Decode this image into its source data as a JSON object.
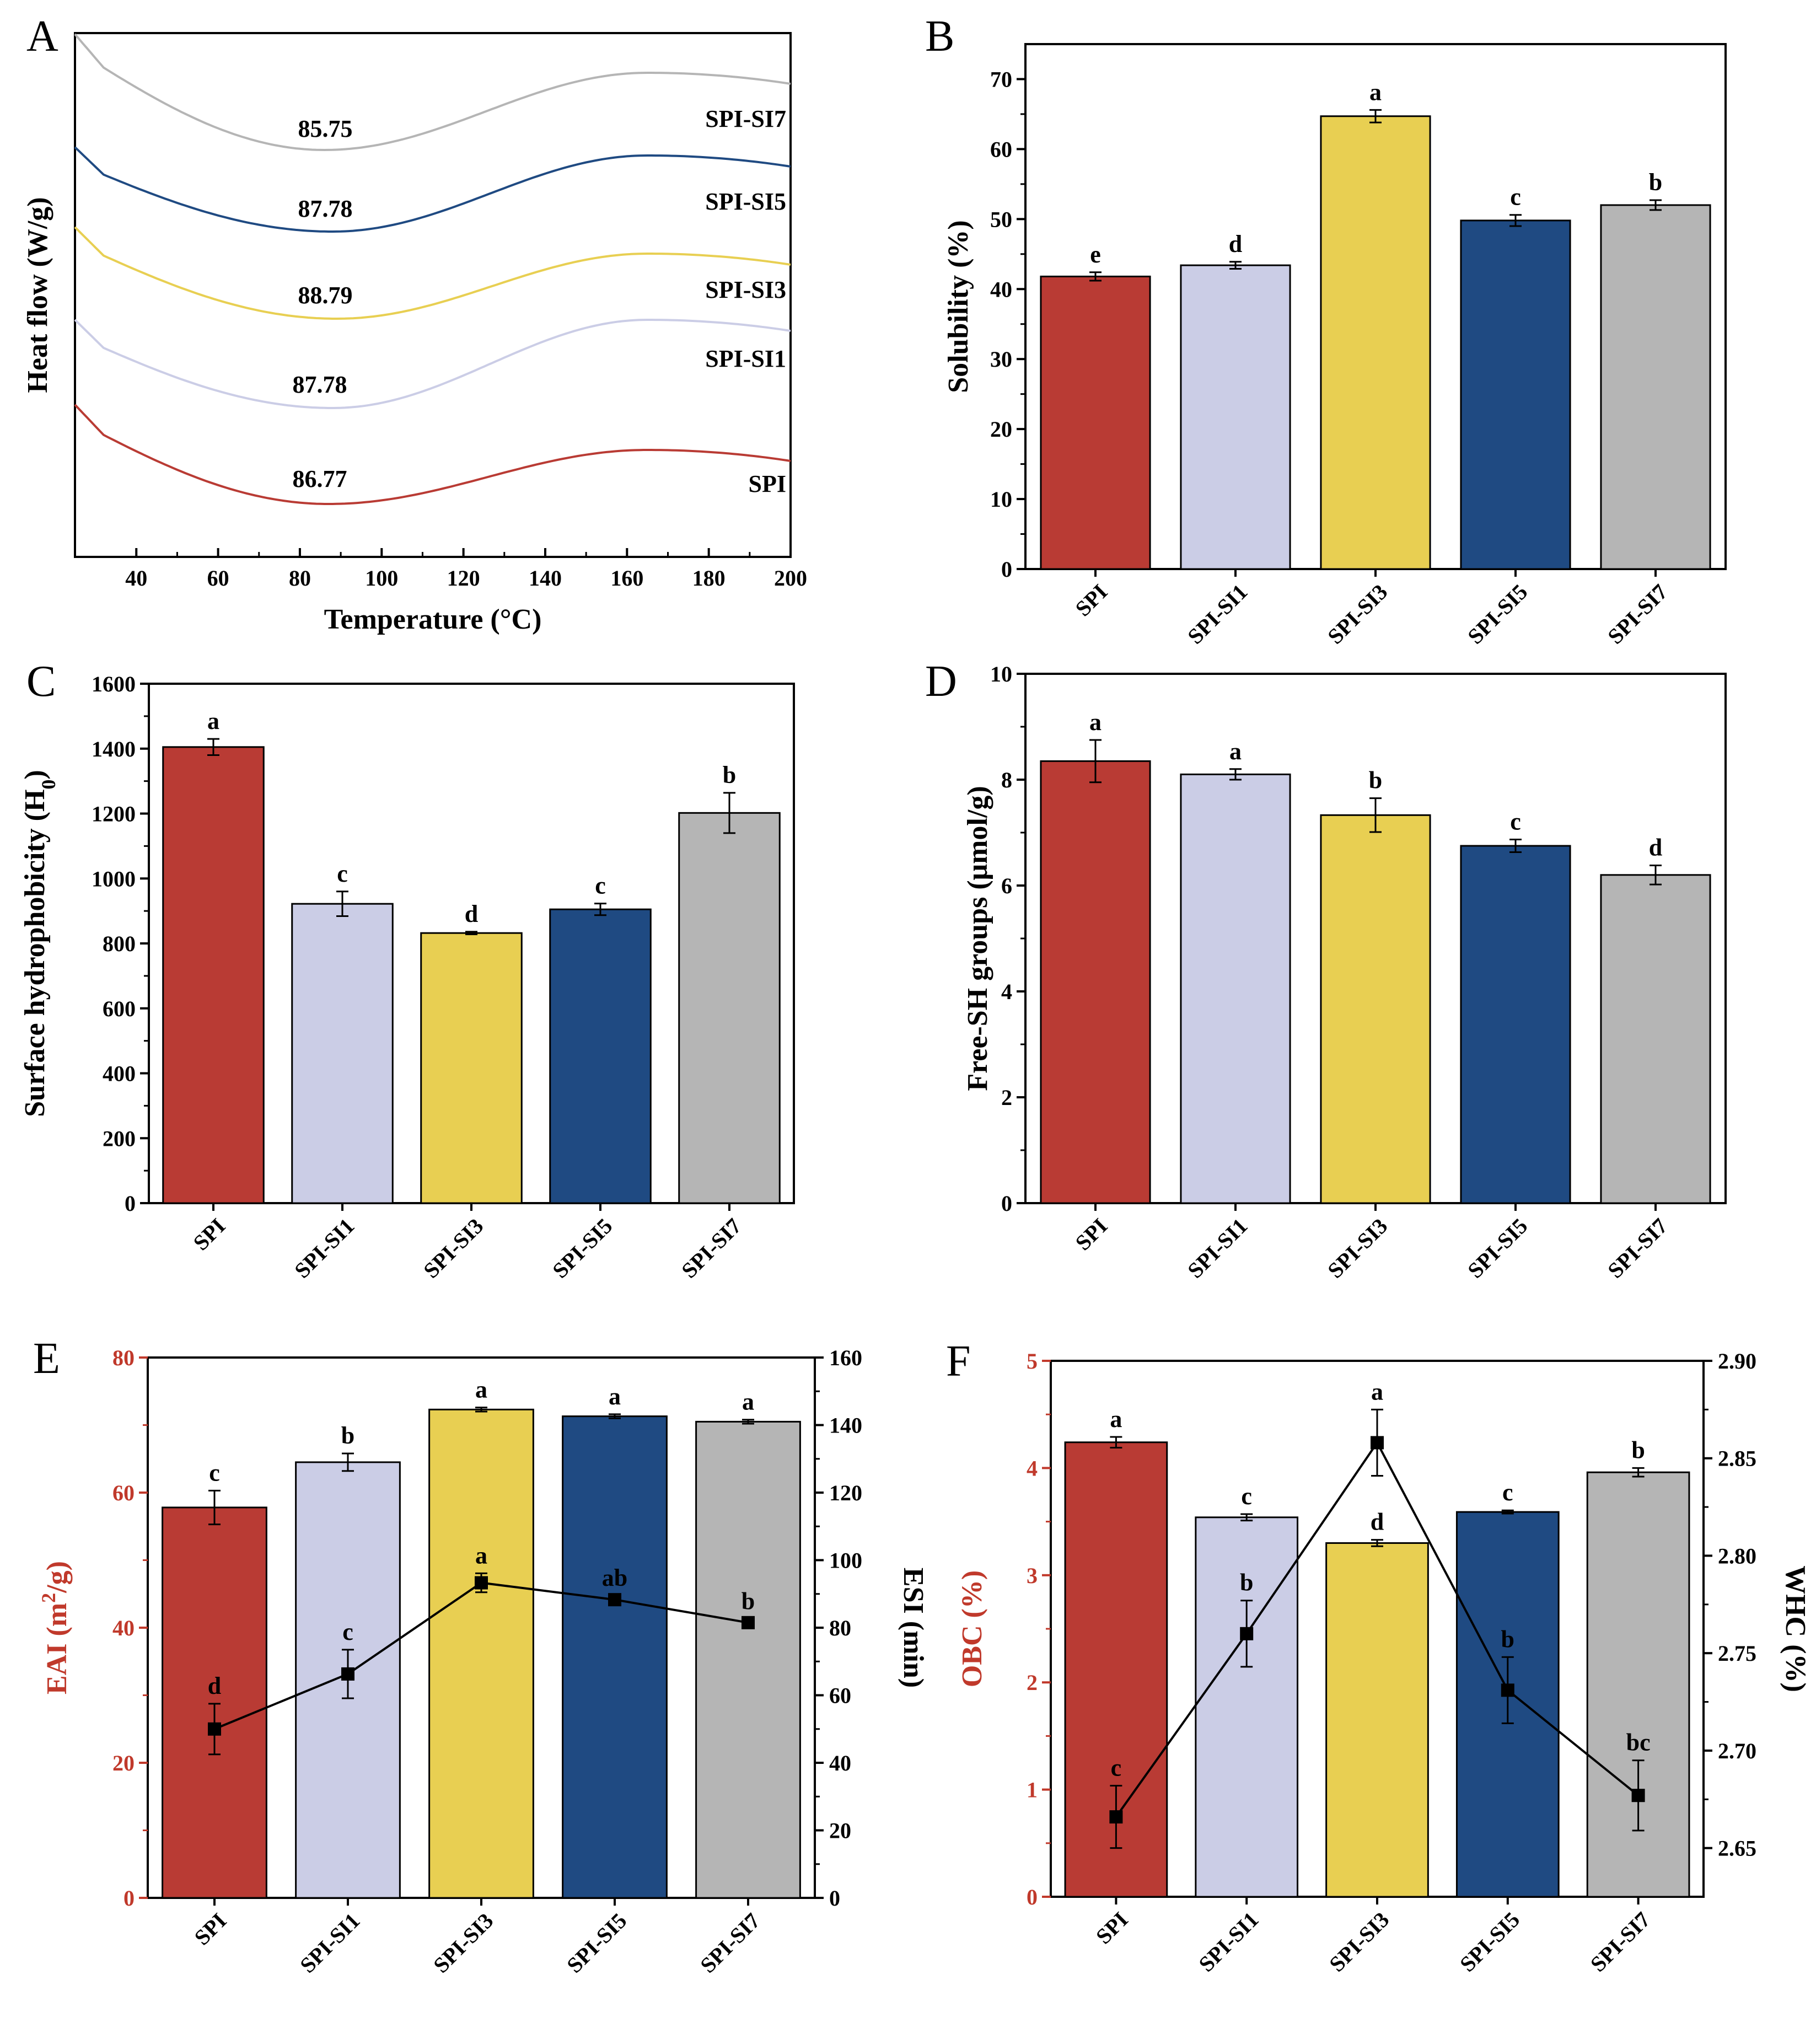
{
  "chart_data": [
    {
      "panel": "A",
      "type": "line",
      "xlabel": "Temperature (°C)",
      "ylabel": "Heat flow (W/g)",
      "xlim": [
        25,
        200
      ],
      "xticks": [
        40,
        60,
        80,
        100,
        120,
        140,
        160,
        180,
        200
      ],
      "series": [
        {
          "name": "SPI-SI7",
          "peak": "85.75",
          "color": "#b5b5b5"
        },
        {
          "name": "SPI-SI5",
          "peak": "87.78",
          "color": "#1f4a82"
        },
        {
          "name": "SPI-SI3",
          "peak": "88.79",
          "color": "#e8cf52"
        },
        {
          "name": "SPI-SI1",
          "peak": "87.78",
          "color": "#cbcde6"
        },
        {
          "name": "SPI",
          "peak": "86.77",
          "color": "#b93b34"
        }
      ]
    },
    {
      "panel": "B",
      "type": "bar",
      "ylabel": "Solubility (%)",
      "ylim": [
        0,
        75
      ],
      "yticks": [
        0,
        10,
        20,
        30,
        40,
        50,
        60,
        70
      ],
      "categories": [
        "SPI",
        "SPI-SI1",
        "SPI-SI3",
        "SPI-SI5",
        "SPI-SI7"
      ],
      "values": [
        41.8,
        43.4,
        64.7,
        49.8,
        52.0
      ],
      "errors": [
        0.6,
        0.5,
        0.9,
        0.8,
        0.7
      ],
      "letters": [
        "e",
        "d",
        "a",
        "c",
        "b"
      ]
    },
    {
      "panel": "C",
      "type": "bar",
      "ylabel": "Surface hydrophobicity (H",
      "ylabel_sub": "0",
      "ylabel_end": ")",
      "ylim": [
        0,
        1600
      ],
      "yticks": [
        0,
        200,
        400,
        600,
        800,
        1000,
        1200,
        1400,
        1600
      ],
      "categories": [
        "SPI",
        "SPI-SI1",
        "SPI-SI3",
        "SPI-SI5",
        "SPI-SI7"
      ],
      "values": [
        1405,
        922,
        832,
        905,
        1202
      ],
      "errors": [
        25,
        38,
        4,
        18,
        62
      ],
      "letters": [
        "a",
        "c",
        "d",
        "c",
        "b"
      ]
    },
    {
      "panel": "D",
      "type": "bar",
      "ylabel": "Free-SH groups (μmol/g)",
      "ylim": [
        0,
        10
      ],
      "yticks": [
        0,
        2,
        4,
        6,
        8,
        10
      ],
      "categories": [
        "SPI",
        "SPI-SI1",
        "SPI-SI3",
        "SPI-SI5",
        "SPI-SI7"
      ],
      "values": [
        8.35,
        8.1,
        7.33,
        6.75,
        6.2
      ],
      "errors": [
        0.4,
        0.1,
        0.32,
        0.12,
        0.18
      ],
      "letters": [
        "a",
        "a",
        "b",
        "c",
        "d"
      ]
    },
    {
      "panel": "E",
      "type": "bar+line",
      "ylabel_left": "EAI (m",
      "ylabel_left_sup": "2",
      "ylabel_left_end": "/g)",
      "ylabel_right": "ESI (min)",
      "ylim_left": [
        0,
        80
      ],
      "yticks_left": [
        0,
        20,
        40,
        60,
        80
      ],
      "ylim_right": [
        0,
        160
      ],
      "yticks_right": [
        0,
        20,
        40,
        60,
        80,
        100,
        120,
        140,
        160
      ],
      "categories": [
        "SPI",
        "SPI-SI1",
        "SPI-SI3",
        "SPI-SI5",
        "SPI-SI7"
      ],
      "bar_series": {
        "name": "EAI",
        "values": [
          57.8,
          64.5,
          72.3,
          71.3,
          70.5
        ],
        "errors": [
          2.5,
          1.3,
          0.3,
          0.3,
          0.3
        ],
        "letters": [
          "c",
          "b",
          "a",
          "a",
          "a"
        ]
      },
      "line_series": {
        "name": "ESI",
        "values": [
          50,
          66.3,
          93.3,
          88.3,
          81.5
        ],
        "errors": [
          7.5,
          7.2,
          2.8,
          1.2,
          1.0
        ],
        "letters": [
          "d",
          "c",
          "a",
          "ab",
          "b"
        ]
      }
    },
    {
      "panel": "F",
      "type": "bar+line",
      "ylabel_left": "OBC (%)",
      "ylabel_right": "WHC (%)",
      "ylim_left": [
        0,
        5
      ],
      "yticks_left": [
        0,
        1,
        2,
        3,
        4,
        5
      ],
      "ylim_right": [
        2.625,
        2.9
      ],
      "yticks_right": [
        "2.65",
        "2.70",
        "2.75",
        "2.80",
        "2.85",
        "2.90"
      ],
      "categories": [
        "SPI",
        "SPI-SI1",
        "SPI-SI3",
        "SPI-SI5",
        "SPI-SI7"
      ],
      "bar_series": {
        "name": "OBC",
        "values": [
          4.24,
          3.54,
          3.3,
          3.59,
          3.96
        ],
        "errors": [
          0.05,
          0.03,
          0.03,
          0.015,
          0.04
        ],
        "letters": [
          "a",
          "c",
          "d",
          "c",
          "b"
        ]
      },
      "line_series": {
        "name": "WHC",
        "values": [
          2.666,
          2.76,
          2.858,
          2.731,
          2.677
        ],
        "errors": [
          0.016,
          0.017,
          0.017,
          0.017,
          0.018
        ],
        "letters": [
          "c",
          "b",
          "a",
          "b",
          "bc"
        ]
      }
    }
  ],
  "bar_colors": [
    "#b93b34",
    "#cbcde6",
    "#e8cf52",
    "#1f4a82",
    "#b5b5b5"
  ],
  "accent_red": "#c0392b"
}
